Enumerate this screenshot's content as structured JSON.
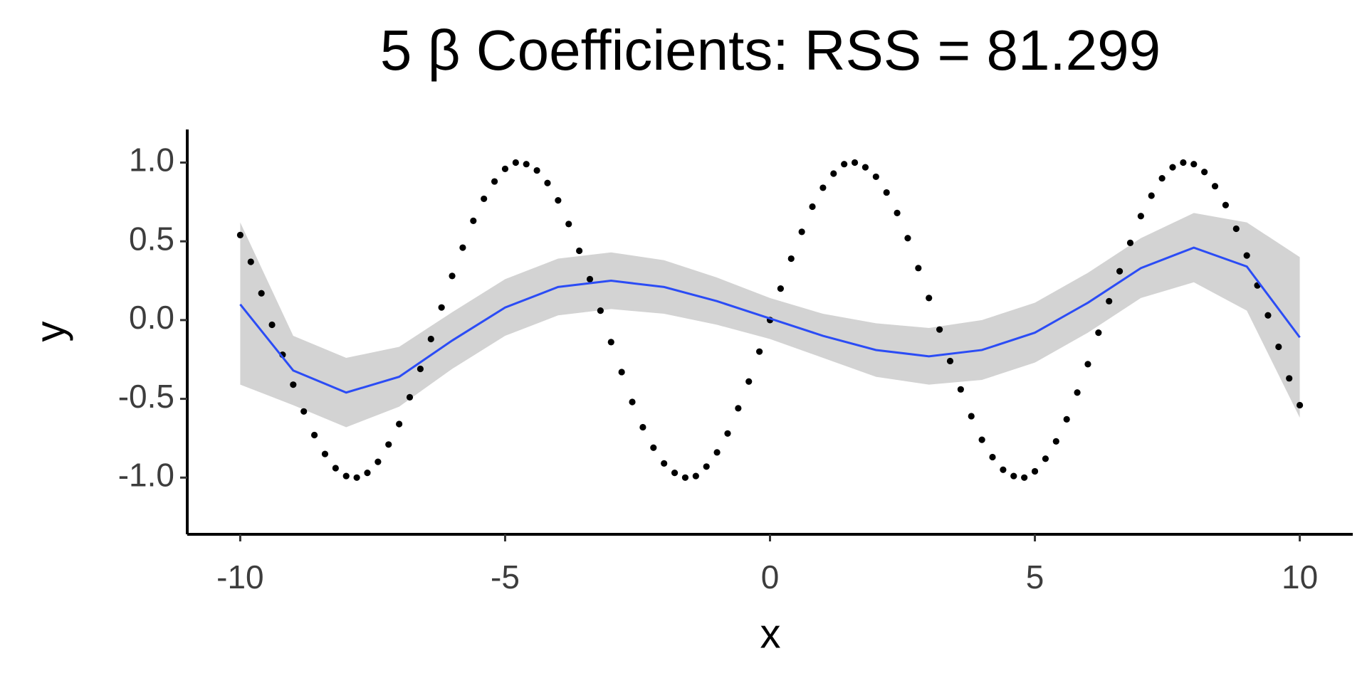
{
  "chart_data": {
    "type": "scatter",
    "title": "5 β Coefficients: RSS = 81.299",
    "x_label": "x",
    "y_label": "y",
    "xlim": [
      -11,
      11
    ],
    "ylim": [
      -1.36,
      1.21
    ],
    "xticks": [
      -10,
      -5,
      0,
      5,
      10
    ],
    "yticks": [
      {
        "value": 1,
        "label": "1.0"
      },
      {
        "value": 0.5,
        "label": "0.5"
      },
      {
        "value": 0,
        "label": "0.0"
      },
      {
        "value": -0.5,
        "label": "-0.5"
      },
      {
        "value": -1,
        "label": "-1.0"
      }
    ],
    "series": [
      {
        "color": "#000000",
        "x": [
          -10,
          -9.8,
          -9.6,
          -9.4,
          -9.2,
          -9,
          -8.8,
          -8.6,
          -8.4,
          -8.2,
          -8,
          -7.8,
          -7.6,
          -7.4,
          -7.2,
          -7,
          -6.8,
          -6.6,
          -6.4,
          -6.2,
          -6,
          -5.8,
          -5.6,
          -5.4,
          -5.2,
          -5,
          -4.8,
          -4.6,
          -4.4,
          -4.2,
          -4,
          -3.8,
          -3.6,
          -3.4,
          -3.2,
          -3,
          -2.8,
          -2.6,
          -2.4,
          -2.2,
          -2,
          -1.8,
          -1.6,
          -1.4,
          -1.2,
          -1,
          -0.8,
          -0.6,
          -0.4,
          -0.2,
          0,
          0.2,
          0.4,
          0.6,
          0.8,
          1,
          1.2,
          1.4,
          1.6,
          1.8,
          2,
          2.2,
          2.4,
          2.6,
          2.8,
          3,
          3.2,
          3.4,
          3.6,
          3.8,
          4,
          4.2,
          4.4,
          4.6,
          4.8,
          5,
          5.2,
          5.4,
          5.6,
          5.8,
          6,
          6.2,
          6.4,
          6.6,
          6.8,
          7,
          7.2,
          7.4,
          7.6,
          7.8,
          8,
          8.2,
          8.4,
          8.6,
          8.8,
          9,
          9.2,
          9.4,
          9.6,
          9.8,
          10
        ],
        "values": [
          0.54,
          0.37,
          0.17,
          -0.03,
          -0.22,
          -0.41,
          -0.58,
          -0.73,
          -0.85,
          -0.94,
          -0.99,
          -1.0,
          -0.97,
          -0.9,
          -0.79,
          -0.66,
          -0.49,
          -0.31,
          -0.12,
          0.08,
          0.28,
          0.46,
          0.63,
          0.77,
          0.88,
          0.96,
          1.0,
          0.99,
          0.95,
          0.87,
          0.76,
          0.61,
          0.44,
          0.26,
          0.06,
          -0.14,
          -0.33,
          -0.52,
          -0.68,
          -0.81,
          -0.91,
          -0.97,
          -1.0,
          -0.99,
          -0.93,
          -0.84,
          -0.72,
          -0.56,
          -0.39,
          -0.2,
          0,
          0.2,
          0.39,
          0.56,
          0.72,
          0.84,
          0.93,
          0.99,
          1.0,
          0.97,
          0.91,
          0.81,
          0.68,
          0.52,
          0.33,
          0.14,
          -0.06,
          -0.26,
          -0.44,
          -0.61,
          -0.76,
          -0.87,
          -0.95,
          -0.99,
          -1.0,
          -0.96,
          -0.88,
          -0.77,
          -0.63,
          -0.46,
          -0.28,
          -0.08,
          0.12,
          0.31,
          0.49,
          0.66,
          0.79,
          0.9,
          0.97,
          1.0,
          0.99,
          0.94,
          0.85,
          0.73,
          0.58,
          0.41,
          0.22,
          0.03,
          -0.17,
          -0.37,
          -0.54
        ]
      }
    ],
    "fit": {
      "color": "#2b4cf5",
      "band_color": "#d3d3d3",
      "x": [
        -10,
        -9,
        -8,
        -7,
        -6,
        -5,
        -4,
        -3,
        -2,
        -1,
        0,
        1,
        2,
        3,
        4,
        5,
        6,
        7,
        8,
        9,
        10
      ],
      "values": [
        0.1,
        -0.32,
        -0.46,
        -0.36,
        -0.13,
        0.08,
        0.21,
        0.25,
        0.21,
        0.12,
        0.01,
        -0.1,
        -0.19,
        -0.23,
        -0.19,
        -0.08,
        0.11,
        0.33,
        0.46,
        0.34,
        -0.11
      ],
      "upper": [
        0.62,
        -0.1,
        -0.24,
        -0.17,
        0.05,
        0.26,
        0.39,
        0.43,
        0.38,
        0.27,
        0.14,
        0.04,
        -0.02,
        -0.05,
        0.0,
        0.11,
        0.3,
        0.52,
        0.68,
        0.62,
        0.4
      ],
      "lower": [
        -0.41,
        -0.54,
        -0.68,
        -0.55,
        -0.31,
        -0.1,
        0.03,
        0.07,
        0.04,
        -0.03,
        -0.12,
        -0.24,
        -0.36,
        -0.41,
        -0.38,
        -0.27,
        -0.08,
        0.14,
        0.24,
        0.06,
        -0.62
      ]
    }
  }
}
